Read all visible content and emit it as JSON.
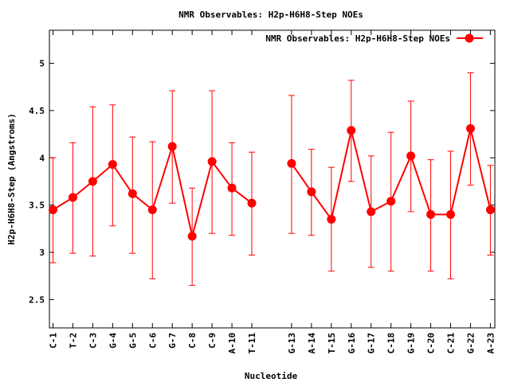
{
  "chart_data": {
    "type": "line",
    "title": "NMR Observables: H2p-H6H8-Step NOEs",
    "xlabel": "Nucleotide",
    "ylabel": "H2p-H6H8-Step (Angstroms)",
    "ylim": [
      2.2,
      5.35
    ],
    "yticks": [
      "2.5",
      "3",
      "3.5",
      "4",
      "4.5",
      "5"
    ],
    "grid": false,
    "legend_position": "top-right",
    "categories": [
      "C-1",
      "T-2",
      "C-3",
      "G-4",
      "G-5",
      "C-6",
      "G-7",
      "C-8",
      "C-9",
      "A-10",
      "T-11",
      "G-13",
      "A-14",
      "T-15",
      "G-16",
      "G-17",
      "C-18",
      "G-19",
      "C-20",
      "C-21",
      "G-22",
      "A-23"
    ],
    "x": [
      1,
      2,
      3,
      4,
      5,
      6,
      7,
      8,
      9,
      10,
      11,
      13,
      14,
      15,
      16,
      17,
      18,
      19,
      20,
      21,
      22,
      23
    ],
    "series": [
      {
        "name": "NMR Observables: H2p-H6H8-Step NOEs",
        "color": "#ff0000",
        "segments": [
          [
            0,
            10
          ],
          [
            11,
            21
          ]
        ],
        "values": [
          3.45,
          3.58,
          3.75,
          3.93,
          3.62,
          3.45,
          4.12,
          3.17,
          3.96,
          3.68,
          3.52,
          3.94,
          3.64,
          3.35,
          4.29,
          3.43,
          3.54,
          4.02,
          3.4,
          3.4,
          4.31,
          3.45
        ],
        "err_low": [
          2.89,
          2.99,
          2.96,
          3.28,
          2.99,
          2.72,
          3.52,
          2.65,
          3.2,
          3.18,
          2.97,
          3.2,
          3.18,
          2.8,
          3.75,
          2.84,
          2.8,
          3.43,
          2.8,
          2.72,
          3.71,
          2.97
        ],
        "err_high": [
          4.0,
          4.16,
          4.54,
          4.56,
          4.22,
          4.17,
          4.71,
          3.68,
          4.71,
          4.16,
          4.06,
          4.66,
          4.09,
          3.9,
          4.82,
          4.02,
          4.27,
          4.6,
          3.98,
          4.07,
          4.9,
          3.92
        ]
      }
    ]
  }
}
